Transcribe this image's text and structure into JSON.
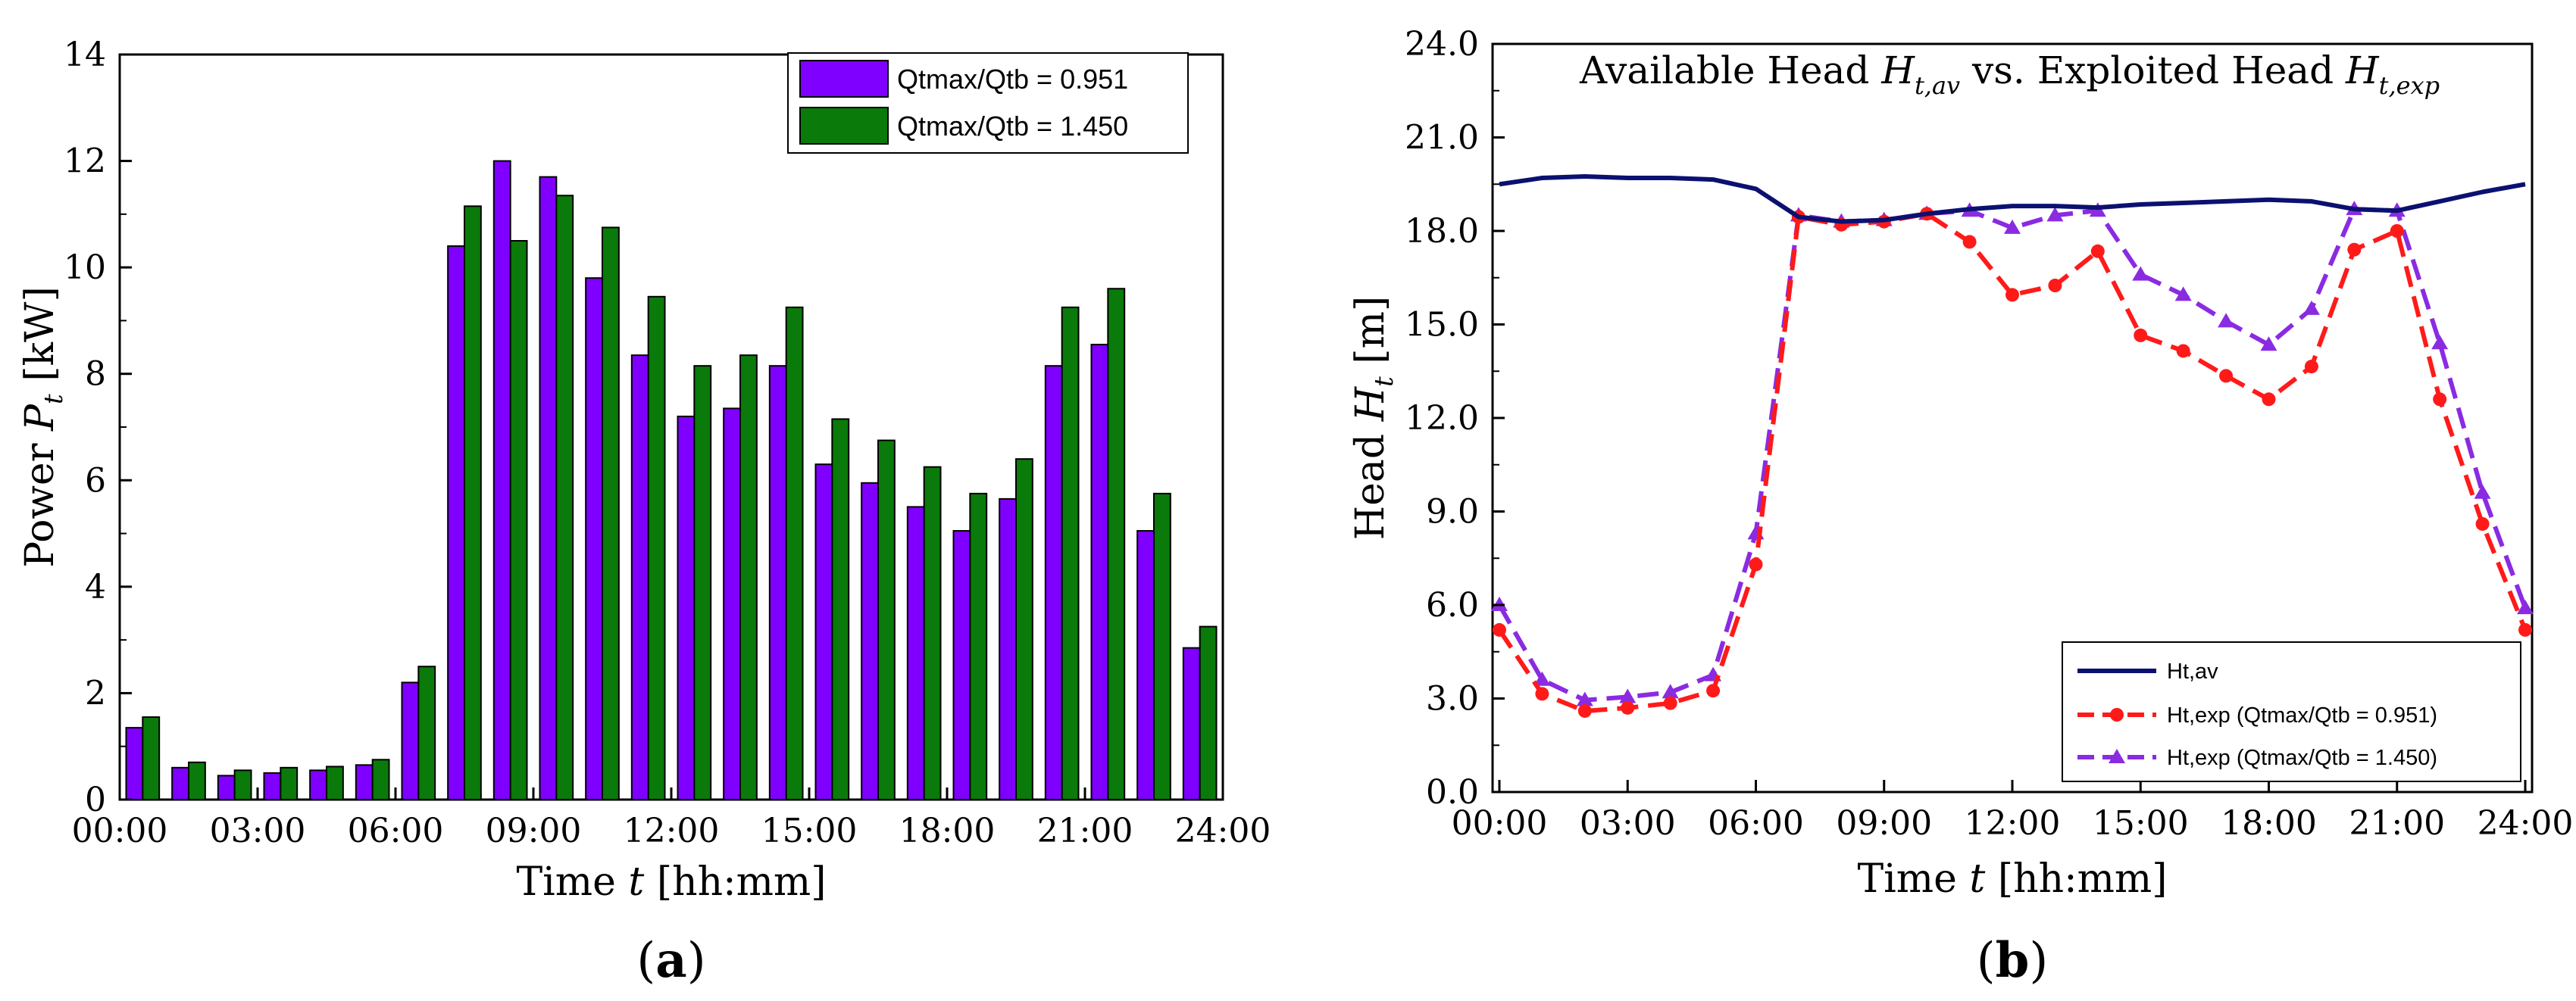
{
  "colors": {
    "series_purple": "#7F00FF",
    "series_green": "#0A7A0A",
    "line_navy": "#0B1170",
    "line_red": "#FF1A1A",
    "line_violet": "#8A2BE2"
  },
  "chart_data": [
    {
      "type": "bar",
      "panel_label": "(a)",
      "title": "",
      "xlabel_prefix": "Time ",
      "xlabel_var": "t",
      "xlabel_suffix": " [hh:mm]",
      "ylabel_prefix": "Power ",
      "ylabel_var": "P",
      "ylabel_sub": "t",
      "ylabel_suffix": " [kW]",
      "ylim": [
        0,
        14
      ],
      "yticks": [
        "0",
        "2",
        "4",
        "6",
        "8",
        "10",
        "12",
        "14"
      ],
      "xlim": [
        0,
        24
      ],
      "xticks": [
        "00:00",
        "03:00",
        "06:00",
        "09:00",
        "12:00",
        "15:00",
        "18:00",
        "21:00",
        "24:00"
      ],
      "legend_position": "top-right",
      "categories": [
        "0",
        "1",
        "2",
        "3",
        "4",
        "5",
        "6",
        "7",
        "8",
        "9",
        "10",
        "11",
        "12",
        "13",
        "14",
        "15",
        "16",
        "17",
        "18",
        "19",
        "20",
        "21",
        "22",
        "23"
      ],
      "series": [
        {
          "name": "Qtmax/Qtb = 0.951",
          "values": [
            1.35,
            0.6,
            0.45,
            0.5,
            0.55,
            0.65,
            2.2,
            10.4,
            12.0,
            11.7,
            9.8,
            8.35,
            7.2,
            7.35,
            8.15,
            6.3,
            5.95,
            5.5,
            5.05,
            5.65,
            8.15,
            8.55,
            5.05,
            2.85
          ]
        },
        {
          "name": "Qtmax/Qtb = 1.450",
          "values": [
            1.55,
            0.7,
            0.55,
            0.6,
            0.62,
            0.75,
            2.5,
            11.15,
            10.5,
            11.35,
            10.75,
            9.45,
            8.15,
            8.35,
            9.25,
            7.15,
            6.75,
            6.25,
            5.75,
            6.4,
            9.25,
            9.6,
            5.75,
            3.25
          ]
        }
      ]
    },
    {
      "type": "line",
      "panel_label": "(b)",
      "title_prefix": "Available Head ",
      "title_var1": "H",
      "title_sub1": "t,av",
      "title_mid": " vs. Exploited Head ",
      "title_var2": "H",
      "title_sub2": "t,exp",
      "xlabel_prefix": "Time ",
      "xlabel_var": "t",
      "xlabel_suffix": " [hh:mm]",
      "ylabel_prefix": "Head ",
      "ylabel_var": "H",
      "ylabel_sub": "t",
      "ylabel_suffix": " [m]",
      "ylim": [
        0,
        24
      ],
      "yticks": [
        "0.0",
        "3.0",
        "6.0",
        "9.0",
        "12.0",
        "15.0",
        "18.0",
        "21.0",
        "24.0"
      ],
      "xlim": [
        0,
        24
      ],
      "xticks": [
        "00:00",
        "03:00",
        "06:00",
        "09:00",
        "12:00",
        "15:00",
        "18:00",
        "21:00",
        "24:00"
      ],
      "legend_position": "bottom-right",
      "x": [
        0,
        1,
        2,
        3,
        4,
        5,
        6,
        7,
        8,
        9,
        10,
        11,
        12,
        13,
        14,
        15,
        16,
        17,
        18,
        19,
        20,
        21,
        22,
        23,
        24
      ],
      "series": [
        {
          "name": "Ht,av",
          "values": [
            19.5,
            19.7,
            19.75,
            19.7,
            19.7,
            19.65,
            19.35,
            18.45,
            18.3,
            18.35,
            18.55,
            18.7,
            18.8,
            18.8,
            18.75,
            18.85,
            18.9,
            18.95,
            19.0,
            18.95,
            18.7,
            18.65,
            18.95,
            19.25,
            19.5
          ]
        },
        {
          "name": "Ht,exp (Qtmax/Qtb = 0.951)",
          "values": [
            5.2,
            3.15,
            2.6,
            2.7,
            2.85,
            3.25,
            7.3,
            18.45,
            18.2,
            18.3,
            18.55,
            17.65,
            15.95,
            16.25,
            17.35,
            14.65,
            14.15,
            13.35,
            12.6,
            13.65,
            17.4,
            18.0,
            12.6,
            8.6,
            5.2
          ]
        },
        {
          "name": "Ht,exp (Qtmax/Qtb = 1.450)",
          "values": [
            6.0,
            3.6,
            2.95,
            3.05,
            3.2,
            3.75,
            8.3,
            18.5,
            18.3,
            18.35,
            18.55,
            18.65,
            18.1,
            18.5,
            18.65,
            16.6,
            15.95,
            15.1,
            14.35,
            15.5,
            18.7,
            18.65,
            14.4,
            9.6,
            5.9
          ]
        }
      ]
    }
  ]
}
